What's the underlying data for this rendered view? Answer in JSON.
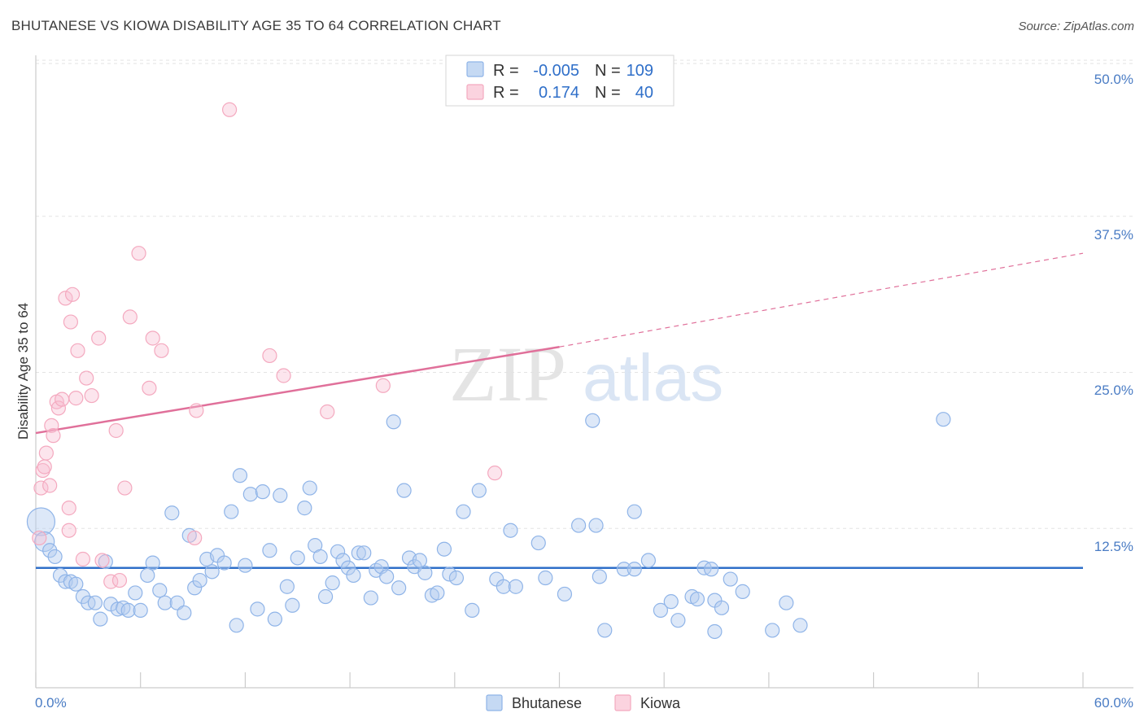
{
  "header": {
    "title": "BHUTANESE VS KIOWA DISABILITY AGE 35 TO 64 CORRELATION CHART",
    "source": "Source: ZipAtlas.com"
  },
  "chart_data": {
    "type": "scatter",
    "title": "BHUTANESE VS KIOWA DISABILITY AGE 35 TO 64 CORRELATION CHART",
    "xlabel": "",
    "ylabel": "Disability Age 35 to 64",
    "xlim": [
      0,
      60
    ],
    "ylim": [
      0,
      50
    ],
    "x_tick_labels": [
      "0.0%",
      "60.0%"
    ],
    "y_ticks": [
      12.5,
      25.0,
      37.5,
      50.0
    ],
    "y_tick_labels": [
      "12.5%",
      "25.0%",
      "37.5%",
      "50.0%"
    ],
    "grid": true,
    "legend_position": "top-center",
    "watermark": {
      "zip": "ZIP",
      "atlas": "atlas"
    },
    "stats_legend": [
      {
        "r_label": "R =",
        "r_value": "-0.005",
        "n_label": "N =",
        "n_value": "109"
      },
      {
        "r_label": "R =",
        "r_value": "0.174",
        "n_label": "N =",
        "n_value": "40"
      }
    ],
    "series": [
      {
        "name": "Bhutanese",
        "color": "#8fb4e8",
        "line_color": "#2f6fc9",
        "trend": {
          "x": [
            0,
            60
          ],
          "y": [
            9.6,
            9.6
          ],
          "dashed_from": null
        },
        "points": [
          [
            0.3,
            13.3
          ],
          [
            0.5,
            11.7
          ],
          [
            0.8,
            11.0
          ],
          [
            1.1,
            10.5
          ],
          [
            1.4,
            9.0
          ],
          [
            1.7,
            8.5
          ],
          [
            2.0,
            8.5
          ],
          [
            2.3,
            8.3
          ],
          [
            2.7,
            7.3
          ],
          [
            3.0,
            6.8
          ],
          [
            3.4,
            6.8
          ],
          [
            3.7,
            5.5
          ],
          [
            4.0,
            10.1
          ],
          [
            4.3,
            6.7
          ],
          [
            4.7,
            6.3
          ],
          [
            5.0,
            6.4
          ],
          [
            5.3,
            6.2
          ],
          [
            5.7,
            7.6
          ],
          [
            6.0,
            6.2
          ],
          [
            6.4,
            9.0
          ],
          [
            6.7,
            10.0
          ],
          [
            7.1,
            7.8
          ],
          [
            7.4,
            6.8
          ],
          [
            7.8,
            14.0
          ],
          [
            8.1,
            6.8
          ],
          [
            8.5,
            6.0
          ],
          [
            8.8,
            12.2
          ],
          [
            9.1,
            8.0
          ],
          [
            9.4,
            8.6
          ],
          [
            9.8,
            10.3
          ],
          [
            10.1,
            9.3
          ],
          [
            10.4,
            10.6
          ],
          [
            10.8,
            10.0
          ],
          [
            11.2,
            14.1
          ],
          [
            11.5,
            5.0
          ],
          [
            11.7,
            17.0
          ],
          [
            12.0,
            9.8
          ],
          [
            12.3,
            15.5
          ],
          [
            12.7,
            6.3
          ],
          [
            13.0,
            15.7
          ],
          [
            13.4,
            11.0
          ],
          [
            13.7,
            5.5
          ],
          [
            14.0,
            15.4
          ],
          [
            14.4,
            8.1
          ],
          [
            14.7,
            6.6
          ],
          [
            15.0,
            10.4
          ],
          [
            15.4,
            14.4
          ],
          [
            15.7,
            16.0
          ],
          [
            16.0,
            11.4
          ],
          [
            16.3,
            10.5
          ],
          [
            16.6,
            7.3
          ],
          [
            17.0,
            8.4
          ],
          [
            17.3,
            10.9
          ],
          [
            17.6,
            10.2
          ],
          [
            17.9,
            9.6
          ],
          [
            18.2,
            9.0
          ],
          [
            18.5,
            10.8
          ],
          [
            18.8,
            10.8
          ],
          [
            19.2,
            7.2
          ],
          [
            19.5,
            9.4
          ],
          [
            19.8,
            9.7
          ],
          [
            20.1,
            8.9
          ],
          [
            20.5,
            21.3
          ],
          [
            20.8,
            8.0
          ],
          [
            21.1,
            15.8
          ],
          [
            21.4,
            10.4
          ],
          [
            21.7,
            9.7
          ],
          [
            22.0,
            10.2
          ],
          [
            22.3,
            9.2
          ],
          [
            22.7,
            7.4
          ],
          [
            23.0,
            7.6
          ],
          [
            23.4,
            11.1
          ],
          [
            23.7,
            9.1
          ],
          [
            24.1,
            8.8
          ],
          [
            24.5,
            14.1
          ],
          [
            25.0,
            6.2
          ],
          [
            25.4,
            15.8
          ],
          [
            26.4,
            8.7
          ],
          [
            26.8,
            8.1
          ],
          [
            27.2,
            12.6
          ],
          [
            27.5,
            8.1
          ],
          [
            28.8,
            11.6
          ],
          [
            29.2,
            8.8
          ],
          [
            30.3,
            7.5
          ],
          [
            31.1,
            13.0
          ],
          [
            31.9,
            21.4
          ],
          [
            32.1,
            13.0
          ],
          [
            32.3,
            8.9
          ],
          [
            32.6,
            4.6
          ],
          [
            33.7,
            9.5
          ],
          [
            34.3,
            14.1
          ],
          [
            34.3,
            9.5
          ],
          [
            35.1,
            10.2
          ],
          [
            35.8,
            6.2
          ],
          [
            36.4,
            6.9
          ],
          [
            36.8,
            5.4
          ],
          [
            37.6,
            7.3
          ],
          [
            37.9,
            7.1
          ],
          [
            38.3,
            9.6
          ],
          [
            38.7,
            9.5
          ],
          [
            38.9,
            4.5
          ],
          [
            38.9,
            7.0
          ],
          [
            39.3,
            6.4
          ],
          [
            39.8,
            8.7
          ],
          [
            40.5,
            7.7
          ],
          [
            42.2,
            4.6
          ],
          [
            43.0,
            6.8
          ],
          [
            43.8,
            5.0
          ],
          [
            52.0,
            21.5
          ]
        ]
      },
      {
        "name": "Kiowa",
        "color": "#f4a9bf",
        "line_color": "#e0709a",
        "trend": {
          "x": [
            0,
            30
          ],
          "y": [
            20.4,
            27.3
          ],
          "dashed_to": [
            60,
            34.8
          ]
        },
        "points": [
          [
            0.2,
            12.0
          ],
          [
            0.3,
            16.0
          ],
          [
            0.4,
            17.4
          ],
          [
            0.5,
            17.7
          ],
          [
            0.6,
            18.8
          ],
          [
            0.8,
            16.2
          ],
          [
            0.9,
            21.0
          ],
          [
            1.0,
            20.2
          ],
          [
            1.2,
            22.9
          ],
          [
            1.3,
            22.4
          ],
          [
            1.5,
            23.1
          ],
          [
            1.7,
            31.2
          ],
          [
            1.9,
            14.4
          ],
          [
            1.9,
            12.6
          ],
          [
            2.0,
            29.3
          ],
          [
            2.1,
            31.5
          ],
          [
            2.3,
            23.2
          ],
          [
            2.4,
            27.0
          ],
          [
            2.7,
            10.3
          ],
          [
            2.9,
            24.8
          ],
          [
            3.2,
            23.4
          ],
          [
            3.6,
            28.0
          ],
          [
            3.8,
            10.2
          ],
          [
            4.3,
            8.5
          ],
          [
            4.6,
            20.6
          ],
          [
            4.8,
            8.6
          ],
          [
            5.1,
            16.0
          ],
          [
            5.4,
            29.7
          ],
          [
            5.9,
            34.8
          ],
          [
            6.5,
            24.0
          ],
          [
            6.7,
            28.0
          ],
          [
            7.2,
            27.0
          ],
          [
            9.2,
            22.2
          ],
          [
            9.1,
            12.0
          ],
          [
            11.1,
            46.3
          ],
          [
            13.4,
            26.6
          ],
          [
            14.2,
            25.0
          ],
          [
            16.7,
            22.1
          ],
          [
            19.9,
            24.2
          ],
          [
            26.3,
            17.2
          ]
        ]
      }
    ]
  },
  "legend_bottom": {
    "items": [
      {
        "label": "Bhutanese",
        "color": "#c5d9f3",
        "stroke": "#8fb4e8"
      },
      {
        "label": "Kiowa",
        "color": "#fbd3df",
        "stroke": "#f4a9bf"
      }
    ]
  }
}
